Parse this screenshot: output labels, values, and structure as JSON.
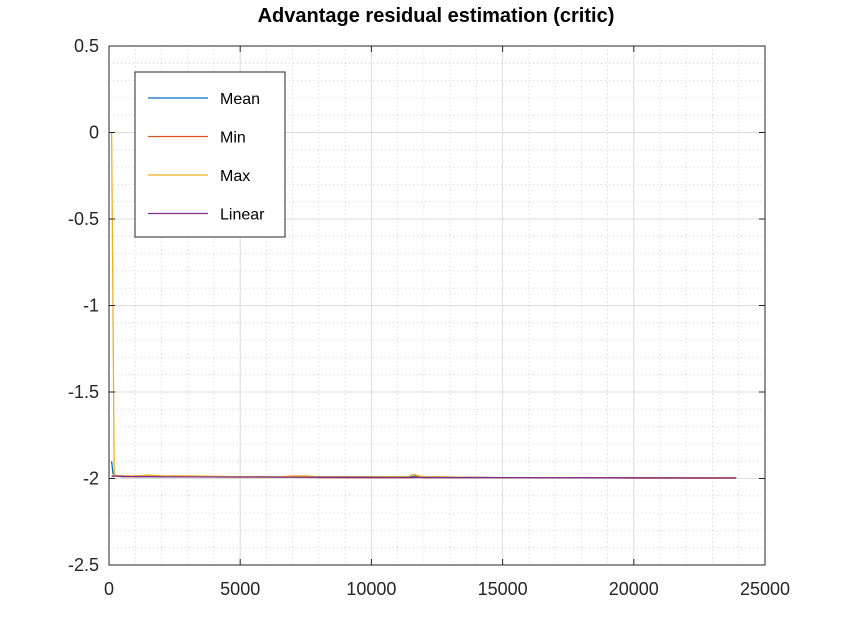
{
  "chart_data": {
    "type": "line",
    "title": "Advantage residual estimation (critic)",
    "xlabel": "",
    "ylabel": "",
    "xlim": [
      0,
      25000
    ],
    "ylim": [
      -2.5,
      0.5
    ],
    "xticks": [
      0,
      5000,
      10000,
      15000,
      20000,
      25000
    ],
    "xtick_labels": [
      "0",
      "5000",
      "10000",
      "15000",
      "20000",
      "25000"
    ],
    "yticks": [
      0.5,
      0,
      -0.5,
      -1,
      -1.5,
      -2,
      -2.5
    ],
    "ytick_labels": [
      "0.5",
      "0",
      "-0.5",
      "-1",
      "-1.5",
      "-2",
      "-2.5"
    ],
    "grid": true,
    "minor_grid": true,
    "legend_position": "top-left",
    "series": [
      {
        "name": "Mean",
        "color": "#0072bd",
        "x": [
          100,
          150,
          200,
          300,
          500,
          1000,
          1500,
          2000,
          3000,
          5000,
          7000,
          8000,
          10000,
          11500,
          11700,
          12000,
          15000,
          20000,
          23900
        ],
        "y": [
          -1.9,
          -1.97,
          -1.98,
          -1.985,
          -1.985,
          -1.99,
          -1.99,
          -1.99,
          -1.99,
          -1.99,
          -1.99,
          -1.99,
          -1.99,
          -1.99,
          -1.985,
          -1.99,
          -1.995,
          -1.995,
          -1.995
        ]
      },
      {
        "name": "Min",
        "color": "#d95319",
        "x": [
          100,
          200,
          300,
          500,
          1000,
          1500,
          2000,
          2500,
          3000,
          4000,
          5000,
          6000,
          7000,
          7500,
          8000,
          9000,
          10000,
          11000,
          11500,
          11700,
          12000,
          13000,
          15000,
          18000,
          20000,
          23900
        ],
        "y": [
          -1.99,
          -1.985,
          -1.985,
          -1.99,
          -1.99,
          -1.985,
          -1.99,
          -1.985,
          -1.99,
          -1.99,
          -1.99,
          -1.99,
          -1.99,
          -1.99,
          -1.995,
          -1.995,
          -1.995,
          -1.995,
          -1.995,
          -1.99,
          -1.995,
          -1.995,
          -1.995,
          -1.995,
          -1.998,
          -1.998
        ]
      },
      {
        "name": "Max",
        "color": "#edb120",
        "x": [
          100,
          150,
          200,
          300,
          500,
          1000,
          1500,
          2000,
          3000,
          5000,
          6500,
          7000,
          7500,
          8000,
          10000,
          11400,
          11600,
          11800,
          12000,
          15000,
          20000,
          23900
        ],
        "y": [
          0.0,
          -1.0,
          -1.98,
          -1.985,
          -1.985,
          -1.985,
          -1.98,
          -1.985,
          -1.985,
          -1.99,
          -1.99,
          -1.985,
          -1.985,
          -1.99,
          -1.99,
          -1.99,
          -1.975,
          -1.985,
          -1.99,
          -1.995,
          -1.995,
          -1.995
        ]
      },
      {
        "name": "Linear",
        "color": "#7e2f8e",
        "x": [
          100,
          500,
          2000,
          5000,
          10000,
          15000,
          20000,
          23900
        ],
        "y": [
          -1.985,
          -1.988,
          -1.99,
          -1.992,
          -1.994,
          -1.995,
          -1.996,
          -1.997
        ]
      }
    ]
  }
}
